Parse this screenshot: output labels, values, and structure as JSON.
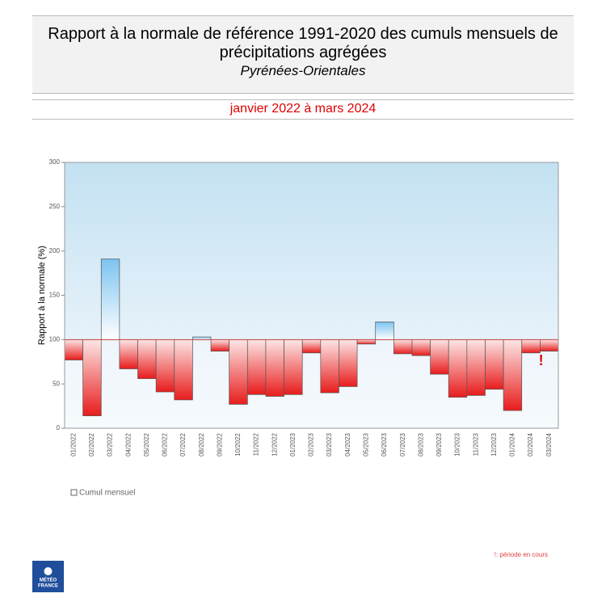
{
  "chart_data": {
    "type": "bar",
    "title": "Rapport à la normale de référence 1991-2020 des cumuls mensuels de précipitations agrégées",
    "subtitle": "Pyrénées-Orientales",
    "period": "janvier 2022 à mars 2024",
    "y_label": "Rapport à la normale (%)",
    "categories": [
      "01/2022",
      "02/2022",
      "03/2022",
      "04/2022",
      "05/2022",
      "06/2022",
      "07/2022",
      "08/2022",
      "09/2022",
      "10/2022",
      "11/2022",
      "12/2022",
      "01/2023",
      "02/2023",
      "03/2023",
      "04/2023",
      "05/2023",
      "06/2023",
      "07/2023",
      "08/2023",
      "09/2023",
      "10/2023",
      "11/2023",
      "12/2023",
      "01/2024",
      "02/2024",
      "03/2024"
    ],
    "series": [
      {
        "name": "Cumul mensuel",
        "values": [
          77,
          14,
          191,
          67,
          56,
          41,
          32,
          103,
          87,
          27,
          38,
          36,
          38,
          85,
          40,
          47,
          95,
          120,
          84,
          82,
          61,
          35,
          37,
          44,
          20,
          85,
          87
        ]
      }
    ],
    "baseline": 100,
    "above_color": "#7cc3f0",
    "below_color": "#e81c1c",
    "ylim": [
      0,
      300
    ],
    "yticks": [
      0,
      50,
      100,
      150,
      200,
      250,
      300
    ],
    "current_period_marker": "!",
    "footnote": "!: période en cours",
    "logo_text": [
      "MÉTÉO",
      "FRANCE"
    ]
  }
}
